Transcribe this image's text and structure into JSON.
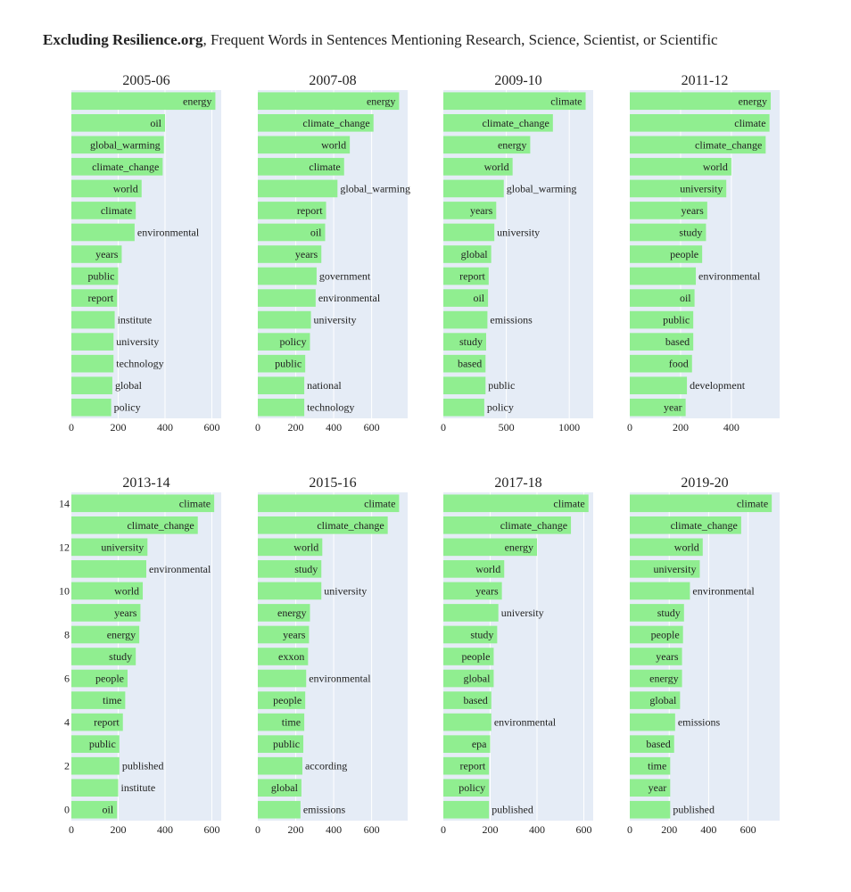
{
  "title_bold": "Excluding Resilience.org",
  "title_rest": ", Frequent Words in Sentences Mentioning Research, Science, Scientist, or Scientific",
  "colors": {
    "bar": "#90ee90",
    "plot_bg": "#e5ecf6",
    "grid": "#ffffff",
    "text": "#222222"
  },
  "chart_data": [
    {
      "type": "bar",
      "title": "2005-06",
      "xlim": [
        0,
        640
      ],
      "xticks": [
        0,
        200,
        400,
        600
      ],
      "categories": [
        "energy",
        "oil",
        "global_warming",
        "climate_change",
        "world",
        "climate",
        "environmental",
        "years",
        "public",
        "report",
        "institute",
        "university",
        "technology",
        "global",
        "policy"
      ],
      "values": [
        615,
        400,
        395,
        390,
        300,
        275,
        270,
        215,
        200,
        195,
        185,
        180,
        180,
        175,
        170
      ]
    },
    {
      "type": "bar",
      "title": "2007-08",
      "xlim": [
        0,
        790
      ],
      "xticks": [
        0,
        200,
        400,
        600
      ],
      "categories": [
        "energy",
        "climate_change",
        "world",
        "climate",
        "global_warming",
        "report",
        "oil",
        "years",
        "government",
        "environmental",
        "university",
        "policy",
        "public",
        "national",
        "technology"
      ],
      "values": [
        745,
        610,
        485,
        455,
        420,
        360,
        355,
        335,
        310,
        305,
        280,
        275,
        250,
        245,
        245
      ]
    },
    {
      "type": "bar",
      "title": "2009-10",
      "xlim": [
        0,
        1190
      ],
      "xticks": [
        0,
        500,
        1000
      ],
      "categories": [
        "climate",
        "climate_change",
        "energy",
        "world",
        "global_warming",
        "years",
        "university",
        "global",
        "report",
        "oil",
        "emissions",
        "study",
        "based",
        "public",
        "policy"
      ],
      "values": [
        1130,
        870,
        690,
        550,
        480,
        420,
        405,
        380,
        360,
        355,
        350,
        340,
        335,
        335,
        325
      ]
    },
    {
      "type": "bar",
      "title": "2011-12",
      "xlim": [
        0,
        590
      ],
      "xticks": [
        0,
        200,
        400
      ],
      "categories": [
        "energy",
        "climate",
        "climate_change",
        "world",
        "university",
        "years",
        "study",
        "people",
        "environmental",
        "oil",
        "public",
        "based",
        "food",
        "development",
        "year"
      ],
      "values": [
        555,
        550,
        535,
        400,
        380,
        305,
        300,
        285,
        260,
        255,
        250,
        250,
        245,
        225,
        220
      ]
    },
    {
      "type": "bar",
      "title": "2013-14",
      "xlim": [
        0,
        640
      ],
      "xticks": [
        0,
        200,
        400,
        600
      ],
      "yaxis_ticks": [
        0,
        2,
        4,
        6,
        8,
        10,
        12,
        14
      ],
      "categories": [
        "climate",
        "climate_change",
        "university",
        "environmental",
        "world",
        "years",
        "energy",
        "study",
        "people",
        "time",
        "report",
        "public",
        "published",
        "institute",
        "oil"
      ],
      "values": [
        610,
        540,
        325,
        320,
        305,
        295,
        290,
        275,
        240,
        230,
        220,
        205,
        205,
        200,
        195
      ]
    },
    {
      "type": "bar",
      "title": "2015-16",
      "xlim": [
        0,
        790
      ],
      "xticks": [
        0,
        200,
        400,
        600
      ],
      "categories": [
        "climate",
        "climate_change",
        "world",
        "study",
        "university",
        "energy",
        "years",
        "exxon",
        "environmental",
        "people",
        "time",
        "public",
        "according",
        "global",
        "emissions"
      ],
      "values": [
        745,
        685,
        340,
        335,
        335,
        275,
        270,
        265,
        255,
        250,
        245,
        240,
        235,
        230,
        225
      ]
    },
    {
      "type": "bar",
      "title": "2017-18",
      "xlim": [
        0,
        640
      ],
      "xticks": [
        0,
        200,
        400,
        600
      ],
      "categories": [
        "climate",
        "climate_change",
        "energy",
        "world",
        "years",
        "university",
        "study",
        "people",
        "global",
        "based",
        "environmental",
        "epa",
        "report",
        "policy",
        "published"
      ],
      "values": [
        620,
        545,
        400,
        260,
        250,
        235,
        230,
        215,
        215,
        205,
        205,
        200,
        195,
        195,
        195
      ]
    },
    {
      "type": "bar",
      "title": "2019-20",
      "xlim": [
        0,
        760
      ],
      "xticks": [
        0,
        200,
        400,
        600
      ],
      "categories": [
        "climate",
        "climate_change",
        "world",
        "university",
        "environmental",
        "study",
        "people",
        "years",
        "energy",
        "global",
        "emissions",
        "based",
        "time",
        "year",
        "published"
      ],
      "values": [
        720,
        565,
        370,
        355,
        305,
        275,
        270,
        265,
        265,
        255,
        230,
        225,
        205,
        205,
        205
      ]
    }
  ]
}
